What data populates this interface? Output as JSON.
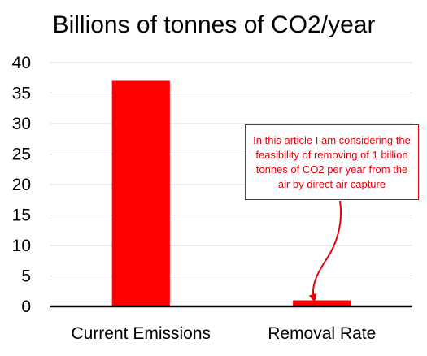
{
  "chart_data": {
    "type": "bar",
    "title": "Billions of tonnes of CO2/year",
    "xlabel": "",
    "ylabel": "",
    "categories": [
      "Current Emissions",
      "Removal Rate"
    ],
    "values": [
      37,
      1
    ],
    "ylim": [
      0,
      40
    ],
    "yticks": [
      "0",
      "5",
      "10",
      "15",
      "20",
      "25",
      "30",
      "35",
      "40"
    ],
    "grid": true,
    "legend": "none",
    "bar_color": "#ff0000",
    "annotation": {
      "text": "In this article I am considering the feasibility of removing of 1 billion tonnes of CO2 per year from the air by direct air capture",
      "color": "#e8000b",
      "points_to": "Removal Rate"
    }
  }
}
